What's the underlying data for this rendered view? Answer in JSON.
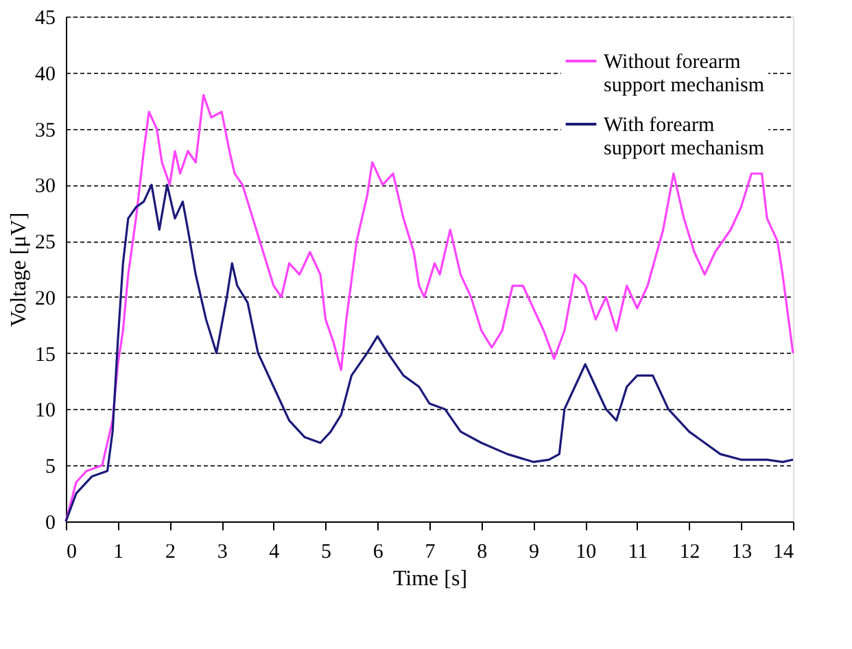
{
  "chart_data": {
    "type": "line",
    "xlabel": "Time [s]",
    "ylabel": "Voltage [μV]",
    "xlim": [
      0,
      14
    ],
    "xticks": [
      0,
      1,
      2,
      3,
      4,
      5,
      6,
      7,
      8,
      9,
      10,
      11,
      12,
      13,
      14
    ],
    "ylim": [
      0,
      45
    ],
    "yticks": [
      0,
      5,
      10,
      15,
      20,
      25,
      30,
      35,
      40,
      45
    ],
    "grid": "y",
    "legend": "top right",
    "marker": "none",
    "line_style": "solid",
    "series": [
      {
        "name": "Without forearm support mechanism",
        "color": "#ff44ff",
        "x": [
          0,
          0.2,
          0.4,
          0.7,
          0.9,
          1.0,
          1.1,
          1.2,
          1.35,
          1.5,
          1.6,
          1.75,
          1.85,
          2.0,
          2.1,
          2.2,
          2.35,
          2.5,
          2.65,
          2.8,
          3.0,
          3.15,
          3.25,
          3.4,
          3.6,
          3.8,
          4.0,
          4.15,
          4.3,
          4.5,
          4.7,
          4.9,
          5.0,
          5.15,
          5.3,
          5.4,
          5.6,
          5.8,
          5.9,
          6.1,
          6.3,
          6.5,
          6.7,
          6.8,
          6.9,
          7.1,
          7.2,
          7.4,
          7.6,
          7.8,
          8.0,
          8.2,
          8.4,
          8.6,
          8.8,
          9.0,
          9.2,
          9.4,
          9.6,
          9.8,
          10.0,
          10.2,
          10.4,
          10.6,
          10.8,
          11.0,
          11.2,
          11.5,
          11.7,
          11.9,
          12.1,
          12.3,
          12.5,
          12.8,
          13.0,
          13.2,
          13.4,
          13.5,
          13.7,
          13.8,
          14.0
        ],
        "values": [
          0,
          3.5,
          4.5,
          5,
          9,
          14,
          17,
          22,
          27,
          33,
          36.5,
          35,
          32,
          30,
          33,
          31,
          33,
          32,
          38,
          36,
          36.5,
          33,
          31,
          30,
          27,
          24,
          21,
          20,
          23,
          22,
          24,
          22,
          18,
          16,
          13.5,
          18,
          25,
          29,
          32,
          30,
          31,
          27,
          24,
          21,
          20,
          23,
          22,
          26,
          22,
          20,
          17,
          15.5,
          17,
          21,
          21,
          19,
          17,
          14.5,
          17,
          22,
          21,
          18,
          20,
          17,
          21,
          19,
          21,
          26,
          31,
          27,
          24,
          22,
          24,
          26,
          28,
          31,
          31,
          27,
          25,
          22,
          15
        ]
      },
      {
        "name": "With forearm support mechanism",
        "color": "#1a1a7a",
        "x": [
          0,
          0.2,
          0.5,
          0.8,
          0.9,
          1.0,
          1.1,
          1.2,
          1.35,
          1.5,
          1.65,
          1.8,
          1.95,
          2.1,
          2.25,
          2.35,
          2.5,
          2.7,
          2.9,
          3.1,
          3.2,
          3.3,
          3.5,
          3.7,
          4.0,
          4.3,
          4.6,
          4.9,
          5.1,
          5.3,
          5.5,
          5.8,
          6.0,
          6.2,
          6.5,
          6.8,
          7.0,
          7.3,
          7.6,
          8.0,
          8.5,
          9.0,
          9.3,
          9.5,
          9.6,
          9.8,
          10.0,
          10.2,
          10.4,
          10.6,
          10.8,
          11.0,
          11.3,
          11.6,
          12.0,
          12.3,
          12.6,
          13.0,
          13.5,
          13.8,
          14.0
        ],
        "values": [
          0,
          2.5,
          4,
          4.5,
          8,
          16,
          23,
          27,
          28,
          28.5,
          30,
          26,
          30,
          27,
          28.5,
          26,
          22,
          18,
          15,
          20,
          23,
          21,
          19.5,
          15,
          12,
          9,
          7.5,
          7,
          8,
          9.5,
          13,
          15,
          16.5,
          15,
          13,
          12,
          10.5,
          10,
          8,
          7,
          6,
          5.3,
          5.5,
          6,
          10,
          12,
          14,
          12,
          10,
          9,
          12,
          13,
          13,
          10,
          8,
          7,
          6,
          5.5,
          5.5,
          5.3,
          5.5
        ]
      }
    ]
  }
}
